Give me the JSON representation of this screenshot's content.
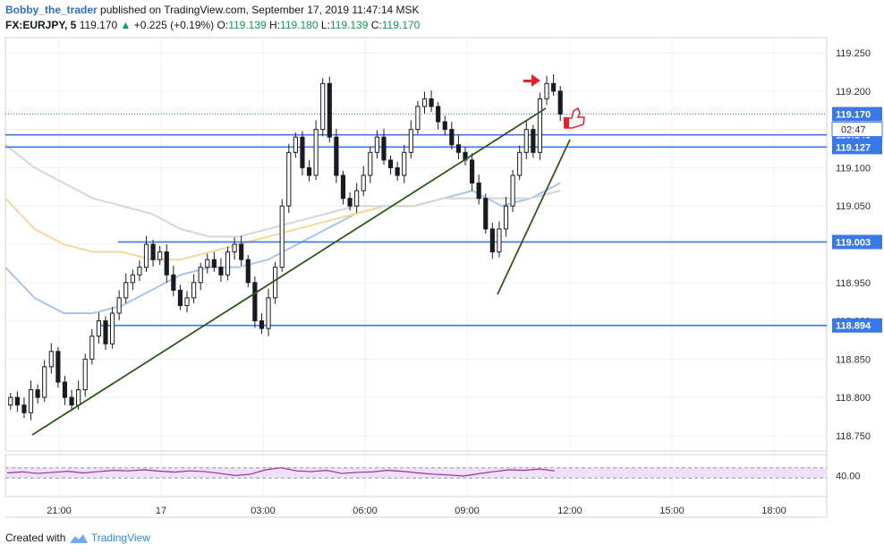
{
  "header": {
    "author": "Bobby_the_trader",
    "published_text": "published on TradingView.com, September 17, 2019 11:47:14 MSK",
    "symbol": "FX:EURJPY, 5",
    "last": "119.170",
    "change": "+0.225 (+0.19%)",
    "o_label": "O:",
    "o_value": "119.139",
    "h_label": "H:",
    "h_value": "119.180",
    "l_label": "L:",
    "l_value": "119.139",
    "c_label": "C:",
    "c_value": "119.170"
  },
  "footer": {
    "created_with": "Created with",
    "brand": "TradingView"
  },
  "colors": {
    "horizontal_line": "#3b78e7",
    "trendline": "#2d5a1b",
    "candle_up": "#ffffff",
    "candle_down": "#1a1a24",
    "ma_blue": "#a8c4ef",
    "ma_yellow": "#f3d89a",
    "ma_grey": "#d6d6d6",
    "rsi_line": "#9c2f9c",
    "rsi_band": "#eee0f8",
    "arrow": "#e8202a"
  },
  "chart_data": {
    "type": "candlestick",
    "title": "FX:EURJPY, 5",
    "ylim": [
      118.73,
      119.27
    ],
    "y_ticks": [
      "119.250",
      "119.200",
      "119.150",
      "119.100",
      "119.050",
      "119.000",
      "118.950",
      "118.900",
      "118.850",
      "118.800",
      "118.750"
    ],
    "x_ticks": [
      "21:00",
      "17",
      "03:00",
      "06:00",
      "09:00",
      "12:00",
      "15:00",
      "18:00"
    ],
    "last_price": "119.170",
    "countdown": "02:47",
    "price_labels": [
      "119.170",
      "119.143",
      "119.127",
      "119.003",
      "118.894"
    ],
    "horizontal_levels": [
      119.143,
      119.127,
      119.003,
      118.894
    ],
    "trendlines": [
      {
        "name": "lower-trendline",
        "from": [
          "20:30",
          118.767
        ],
        "to": [
          "11:20",
          119.206
        ]
      },
      {
        "name": "steep-trendline",
        "from": [
          "09:55",
          118.944
        ],
        "to": [
          "11:55",
          119.151
        ]
      }
    ],
    "price_path": [
      118.8,
      118.79,
      118.78,
      118.81,
      118.8,
      118.84,
      118.86,
      118.82,
      118.8,
      118.79,
      118.81,
      118.85,
      118.88,
      118.9,
      118.87,
      118.91,
      118.93,
      118.95,
      118.96,
      118.97,
      119.0,
      118.98,
      118.99,
      118.96,
      118.94,
      118.92,
      118.93,
      118.95,
      118.97,
      118.98,
      118.97,
      118.96,
      118.99,
      119.0,
      118.98,
      118.95,
      118.9,
      118.89,
      118.93,
      118.97,
      119.05,
      119.12,
      119.14,
      119.1,
      119.09,
      119.15,
      119.21,
      119.14,
      119.09,
      119.06,
      119.05,
      119.07,
      119.09,
      119.12,
      119.14,
      119.11,
      119.1,
      119.09,
      119.12,
      119.15,
      119.18,
      119.19,
      119.18,
      119.16,
      119.15,
      119.13,
      119.12,
      119.11,
      119.08,
      119.06,
      119.02,
      118.99,
      119.02,
      119.05,
      119.09,
      119.12,
      119.15,
      119.12,
      119.19,
      119.21,
      119.2,
      119.17
    ],
    "moving_averages": [
      {
        "name": "ma-blue",
        "color": "#a8c4ef",
        "values": [
          118.97,
          118.93,
          118.91,
          118.91,
          118.92,
          118.94,
          118.96,
          118.97,
          118.97,
          118.98,
          119.0,
          119.02,
          119.04,
          119.05,
          119.05,
          119.06,
          119.07,
          119.05,
          119.06,
          119.08
        ]
      },
      {
        "name": "ma-yellow",
        "color": "#f3d89a",
        "values": [
          119.06,
          119.02,
          119.0,
          118.99,
          118.99,
          118.98,
          118.98,
          118.99,
          119.0,
          119.01,
          119.02,
          119.03,
          119.04,
          119.05,
          119.05,
          119.06,
          119.06,
          119.06,
          119.06,
          119.07
        ]
      },
      {
        "name": "ma-grey",
        "color": "#d6d6d6",
        "values": [
          119.13,
          119.1,
          119.08,
          119.06,
          119.05,
          119.04,
          119.02,
          119.01,
          119.01,
          119.02,
          119.03,
          119.04,
          119.05,
          119.05,
          119.05,
          119.06,
          119.06,
          119.06,
          119.06,
          119.07
        ]
      }
    ],
    "rsi": {
      "label": "40.00",
      "band": [
        30,
        70
      ],
      "values": [
        50,
        54,
        48,
        52,
        56,
        50,
        55,
        60,
        58,
        62,
        57,
        53,
        58,
        55,
        48,
        40,
        45,
        62,
        70,
        58,
        55,
        60,
        48,
        52,
        54,
        60,
        56,
        50,
        45,
        42,
        38,
        47,
        55,
        62,
        60,
        65,
        58
      ]
    }
  }
}
